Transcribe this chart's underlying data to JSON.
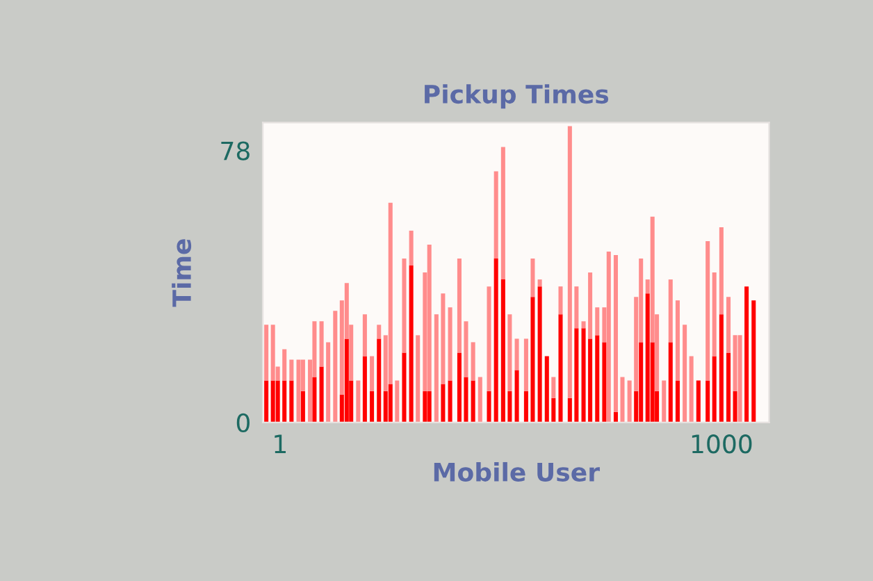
{
  "chart_data": {
    "type": "bar",
    "title": "Pickup Times",
    "xlabel": "Mobile User",
    "ylabel": "Time",
    "x": [
      -30,
      -15,
      -4,
      11,
      27,
      43,
      53,
      69,
      79,
      95,
      110,
      126,
      141,
      152,
      162,
      178,
      193,
      209,
      225,
      240,
      251,
      266,
      282,
      298,
      313,
      329,
      339,
      355,
      370,
      386,
      407,
      422,
      438,
      454,
      474,
      490,
      506,
      521,
      537,
      558,
      573,
      589,
      605,
      620,
      636,
      657,
      672,
      688,
      703,
      719,
      735,
      745,
      761,
      776,
      792,
      807,
      818,
      833,
      844,
      854,
      870,
      885,
      901,
      917,
      932,
      948,
      969,
      984,
      1000,
      1016,
      1031,
      1042,
      1057,
      1073
    ],
    "series": [
      {
        "color": "#ff0000",
        "values": [
          12,
          12,
          12,
          12,
          12,
          0,
          9,
          0,
          13,
          16,
          0,
          0,
          8,
          24,
          12,
          0,
          19,
          9,
          24,
          9,
          11,
          0,
          20,
          45,
          0,
          9,
          9,
          0,
          11,
          12,
          20,
          13,
          12,
          0,
          9,
          47,
          41,
          9,
          15,
          9,
          36,
          39,
          19,
          7,
          31,
          7,
          27,
          27,
          24,
          25,
          23,
          0,
          3,
          0,
          0,
          9,
          23,
          37,
          23,
          9,
          0,
          23,
          12,
          0,
          0,
          12,
          12,
          19,
          31,
          20,
          9,
          0,
          39,
          35
        ]
      },
      {
        "color": "#ff8c8c",
        "values": [
          16,
          16,
          4,
          9,
          6,
          18,
          9,
          18,
          16,
          13,
          23,
          32,
          27,
          16,
          16,
          12,
          12,
          10,
          4,
          16,
          52,
          12,
          27,
          10,
          25,
          34,
          42,
          31,
          26,
          21,
          27,
          16,
          11,
          13,
          30,
          25,
          38,
          22,
          9,
          15,
          11,
          2,
          0,
          6,
          8,
          78,
          12,
          2,
          19,
          8,
          10,
          49,
          45,
          13,
          12,
          27,
          24,
          4,
          36,
          22,
          12,
          18,
          23,
          28,
          19,
          0,
          40,
          24,
          25,
          16,
          16,
          25,
          0,
          0
        ]
      }
    ],
    "stacked": true,
    "xlim": [
      -38,
      1108
    ],
    "ylim": [
      0,
      86
    ],
    "xticks": [
      1,
      1000
    ],
    "yticks": [
      0,
      78
    ],
    "grid": false,
    "legend": false
  }
}
